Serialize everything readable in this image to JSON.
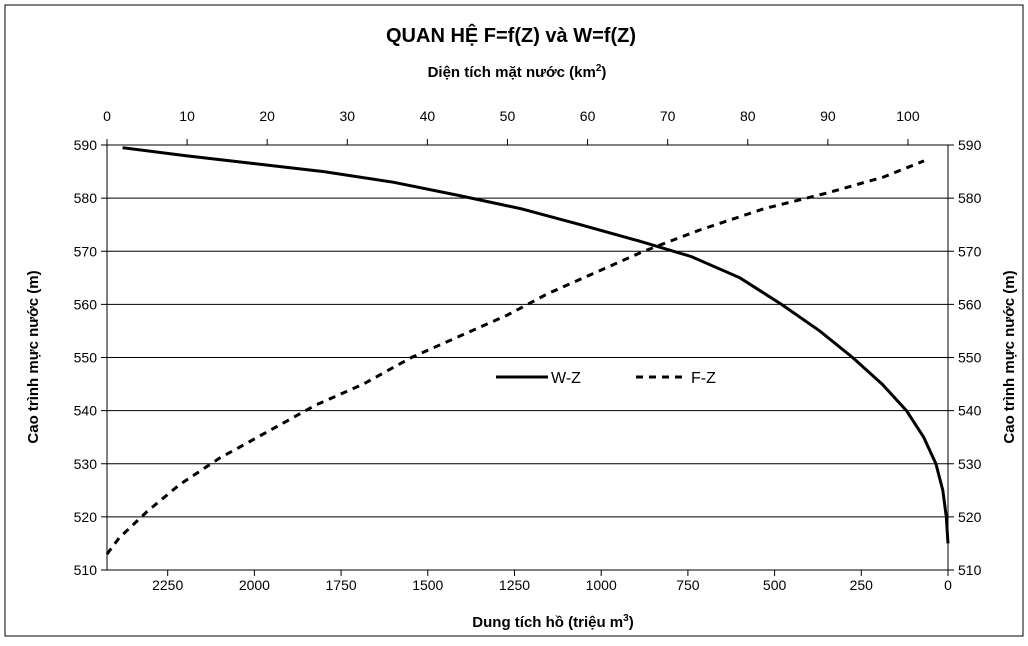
{
  "chart_data": {
    "type": "line",
    "title": "QUAN HỆ F=f(Z) và W=f(Z)",
    "top_axis": {
      "label": "Diện tích mặt nước (km",
      "label_sup": "2",
      "label_tail": ")",
      "range": [
        0,
        105
      ],
      "ticks": [
        0,
        10,
        20,
        30,
        40,
        50,
        60,
        70,
        80,
        90,
        100
      ]
    },
    "bottom_axis": {
      "label": "Dung tích hồ (triệu m",
      "label_sup": "3",
      "label_tail": ")",
      "reversed": true,
      "range": [
        2425,
        0
      ],
      "ticks": [
        2250,
        2000,
        1750,
        1500,
        1250,
        1000,
        750,
        500,
        250,
        0
      ]
    },
    "left_axis": {
      "label": "Cao trình mực nước (m)",
      "range": [
        510,
        590
      ],
      "ticks": [
        510,
        520,
        530,
        540,
        550,
        560,
        570,
        580,
        590
      ]
    },
    "right_axis": {
      "label": "Cao trình mực nước (m)",
      "range": [
        510,
        590
      ],
      "ticks": [
        510,
        520,
        530,
        540,
        550,
        560,
        570,
        580,
        590
      ]
    },
    "grid": "horizontal",
    "legend": "center",
    "series": [
      {
        "name": "W-Z",
        "x_axis": "bottom",
        "style": "solid",
        "points": [
          [
            0,
            515
          ],
          [
            5,
            520
          ],
          [
            15,
            525
          ],
          [
            35,
            530
          ],
          [
            70,
            535
          ],
          [
            120,
            540
          ],
          [
            190,
            545
          ],
          [
            275,
            550
          ],
          [
            370,
            555
          ],
          [
            480,
            560
          ],
          [
            600,
            565
          ],
          [
            740,
            569
          ],
          [
            895,
            572
          ],
          [
            1060,
            575
          ],
          [
            1230,
            578
          ],
          [
            1410,
            580.5
          ],
          [
            1600,
            583
          ],
          [
            1800,
            585
          ],
          [
            2000,
            586.5
          ],
          [
            2200,
            588
          ],
          [
            2380,
            589.5
          ]
        ]
      },
      {
        "name": "F-Z",
        "x_axis": "top",
        "style": "dashed",
        "points": [
          [
            0,
            513
          ],
          [
            1.5,
            516
          ],
          [
            5,
            521
          ],
          [
            9,
            526
          ],
          [
            14,
            531
          ],
          [
            20,
            536
          ],
          [
            26,
            541
          ],
          [
            32,
            545
          ],
          [
            38,
            550
          ],
          [
            44,
            554
          ],
          [
            50,
            558
          ],
          [
            55,
            562
          ],
          [
            61,
            566
          ],
          [
            67,
            570
          ],
          [
            74,
            574
          ],
          [
            82,
            578
          ],
          [
            90,
            581
          ],
          [
            97,
            584
          ],
          [
            102,
            587
          ]
        ]
      }
    ]
  }
}
